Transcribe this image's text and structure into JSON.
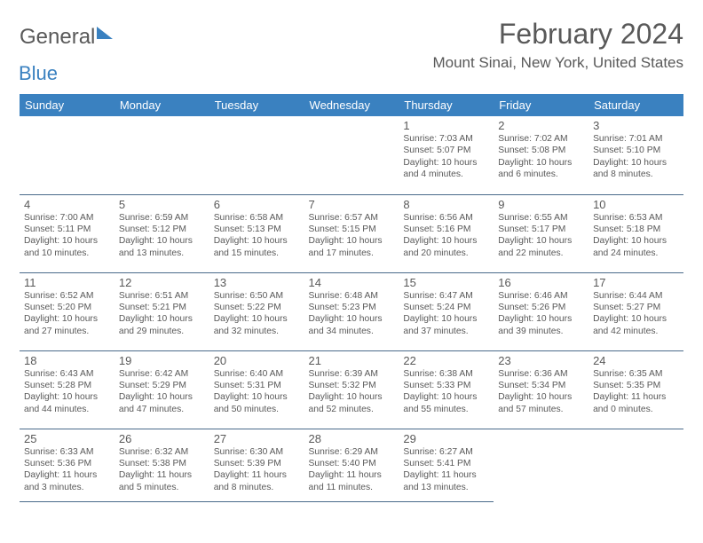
{
  "brand": {
    "part1": "General",
    "part2": "Blue"
  },
  "title": "February 2024",
  "location": "Mount Sinai, New York, United States",
  "colors": {
    "accent": "#3a81c0",
    "text": "#595959",
    "border": "#4a6a8a",
    "bg": "#ffffff"
  },
  "day_headers": [
    "Sunday",
    "Monday",
    "Tuesday",
    "Wednesday",
    "Thursday",
    "Friday",
    "Saturday"
  ],
  "weeks": [
    [
      null,
      null,
      null,
      null,
      {
        "n": "1",
        "sr": "Sunrise: 7:03 AM",
        "ss": "Sunset: 5:07 PM",
        "d1": "Daylight: 10 hours",
        "d2": "and 4 minutes."
      },
      {
        "n": "2",
        "sr": "Sunrise: 7:02 AM",
        "ss": "Sunset: 5:08 PM",
        "d1": "Daylight: 10 hours",
        "d2": "and 6 minutes."
      },
      {
        "n": "3",
        "sr": "Sunrise: 7:01 AM",
        "ss": "Sunset: 5:10 PM",
        "d1": "Daylight: 10 hours",
        "d2": "and 8 minutes."
      }
    ],
    [
      {
        "n": "4",
        "sr": "Sunrise: 7:00 AM",
        "ss": "Sunset: 5:11 PM",
        "d1": "Daylight: 10 hours",
        "d2": "and 10 minutes."
      },
      {
        "n": "5",
        "sr": "Sunrise: 6:59 AM",
        "ss": "Sunset: 5:12 PM",
        "d1": "Daylight: 10 hours",
        "d2": "and 13 minutes."
      },
      {
        "n": "6",
        "sr": "Sunrise: 6:58 AM",
        "ss": "Sunset: 5:13 PM",
        "d1": "Daylight: 10 hours",
        "d2": "and 15 minutes."
      },
      {
        "n": "7",
        "sr": "Sunrise: 6:57 AM",
        "ss": "Sunset: 5:15 PM",
        "d1": "Daylight: 10 hours",
        "d2": "and 17 minutes."
      },
      {
        "n": "8",
        "sr": "Sunrise: 6:56 AM",
        "ss": "Sunset: 5:16 PM",
        "d1": "Daylight: 10 hours",
        "d2": "and 20 minutes."
      },
      {
        "n": "9",
        "sr": "Sunrise: 6:55 AM",
        "ss": "Sunset: 5:17 PM",
        "d1": "Daylight: 10 hours",
        "d2": "and 22 minutes."
      },
      {
        "n": "10",
        "sr": "Sunrise: 6:53 AM",
        "ss": "Sunset: 5:18 PM",
        "d1": "Daylight: 10 hours",
        "d2": "and 24 minutes."
      }
    ],
    [
      {
        "n": "11",
        "sr": "Sunrise: 6:52 AM",
        "ss": "Sunset: 5:20 PM",
        "d1": "Daylight: 10 hours",
        "d2": "and 27 minutes."
      },
      {
        "n": "12",
        "sr": "Sunrise: 6:51 AM",
        "ss": "Sunset: 5:21 PM",
        "d1": "Daylight: 10 hours",
        "d2": "and 29 minutes."
      },
      {
        "n": "13",
        "sr": "Sunrise: 6:50 AM",
        "ss": "Sunset: 5:22 PM",
        "d1": "Daylight: 10 hours",
        "d2": "and 32 minutes."
      },
      {
        "n": "14",
        "sr": "Sunrise: 6:48 AM",
        "ss": "Sunset: 5:23 PM",
        "d1": "Daylight: 10 hours",
        "d2": "and 34 minutes."
      },
      {
        "n": "15",
        "sr": "Sunrise: 6:47 AM",
        "ss": "Sunset: 5:24 PM",
        "d1": "Daylight: 10 hours",
        "d2": "and 37 minutes."
      },
      {
        "n": "16",
        "sr": "Sunrise: 6:46 AM",
        "ss": "Sunset: 5:26 PM",
        "d1": "Daylight: 10 hours",
        "d2": "and 39 minutes."
      },
      {
        "n": "17",
        "sr": "Sunrise: 6:44 AM",
        "ss": "Sunset: 5:27 PM",
        "d1": "Daylight: 10 hours",
        "d2": "and 42 minutes."
      }
    ],
    [
      {
        "n": "18",
        "sr": "Sunrise: 6:43 AM",
        "ss": "Sunset: 5:28 PM",
        "d1": "Daylight: 10 hours",
        "d2": "and 44 minutes."
      },
      {
        "n": "19",
        "sr": "Sunrise: 6:42 AM",
        "ss": "Sunset: 5:29 PM",
        "d1": "Daylight: 10 hours",
        "d2": "and 47 minutes."
      },
      {
        "n": "20",
        "sr": "Sunrise: 6:40 AM",
        "ss": "Sunset: 5:31 PM",
        "d1": "Daylight: 10 hours",
        "d2": "and 50 minutes."
      },
      {
        "n": "21",
        "sr": "Sunrise: 6:39 AM",
        "ss": "Sunset: 5:32 PM",
        "d1": "Daylight: 10 hours",
        "d2": "and 52 minutes."
      },
      {
        "n": "22",
        "sr": "Sunrise: 6:38 AM",
        "ss": "Sunset: 5:33 PM",
        "d1": "Daylight: 10 hours",
        "d2": "and 55 minutes."
      },
      {
        "n": "23",
        "sr": "Sunrise: 6:36 AM",
        "ss": "Sunset: 5:34 PM",
        "d1": "Daylight: 10 hours",
        "d2": "and 57 minutes."
      },
      {
        "n": "24",
        "sr": "Sunrise: 6:35 AM",
        "ss": "Sunset: 5:35 PM",
        "d1": "Daylight: 11 hours",
        "d2": "and 0 minutes."
      }
    ],
    [
      {
        "n": "25",
        "sr": "Sunrise: 6:33 AM",
        "ss": "Sunset: 5:36 PM",
        "d1": "Daylight: 11 hours",
        "d2": "and 3 minutes."
      },
      {
        "n": "26",
        "sr": "Sunrise: 6:32 AM",
        "ss": "Sunset: 5:38 PM",
        "d1": "Daylight: 11 hours",
        "d2": "and 5 minutes."
      },
      {
        "n": "27",
        "sr": "Sunrise: 6:30 AM",
        "ss": "Sunset: 5:39 PM",
        "d1": "Daylight: 11 hours",
        "d2": "and 8 minutes."
      },
      {
        "n": "28",
        "sr": "Sunrise: 6:29 AM",
        "ss": "Sunset: 5:40 PM",
        "d1": "Daylight: 11 hours",
        "d2": "and 11 minutes."
      },
      {
        "n": "29",
        "sr": "Sunrise: 6:27 AM",
        "ss": "Sunset: 5:41 PM",
        "d1": "Daylight: 11 hours",
        "d2": "and 13 minutes."
      },
      null,
      null
    ]
  ]
}
